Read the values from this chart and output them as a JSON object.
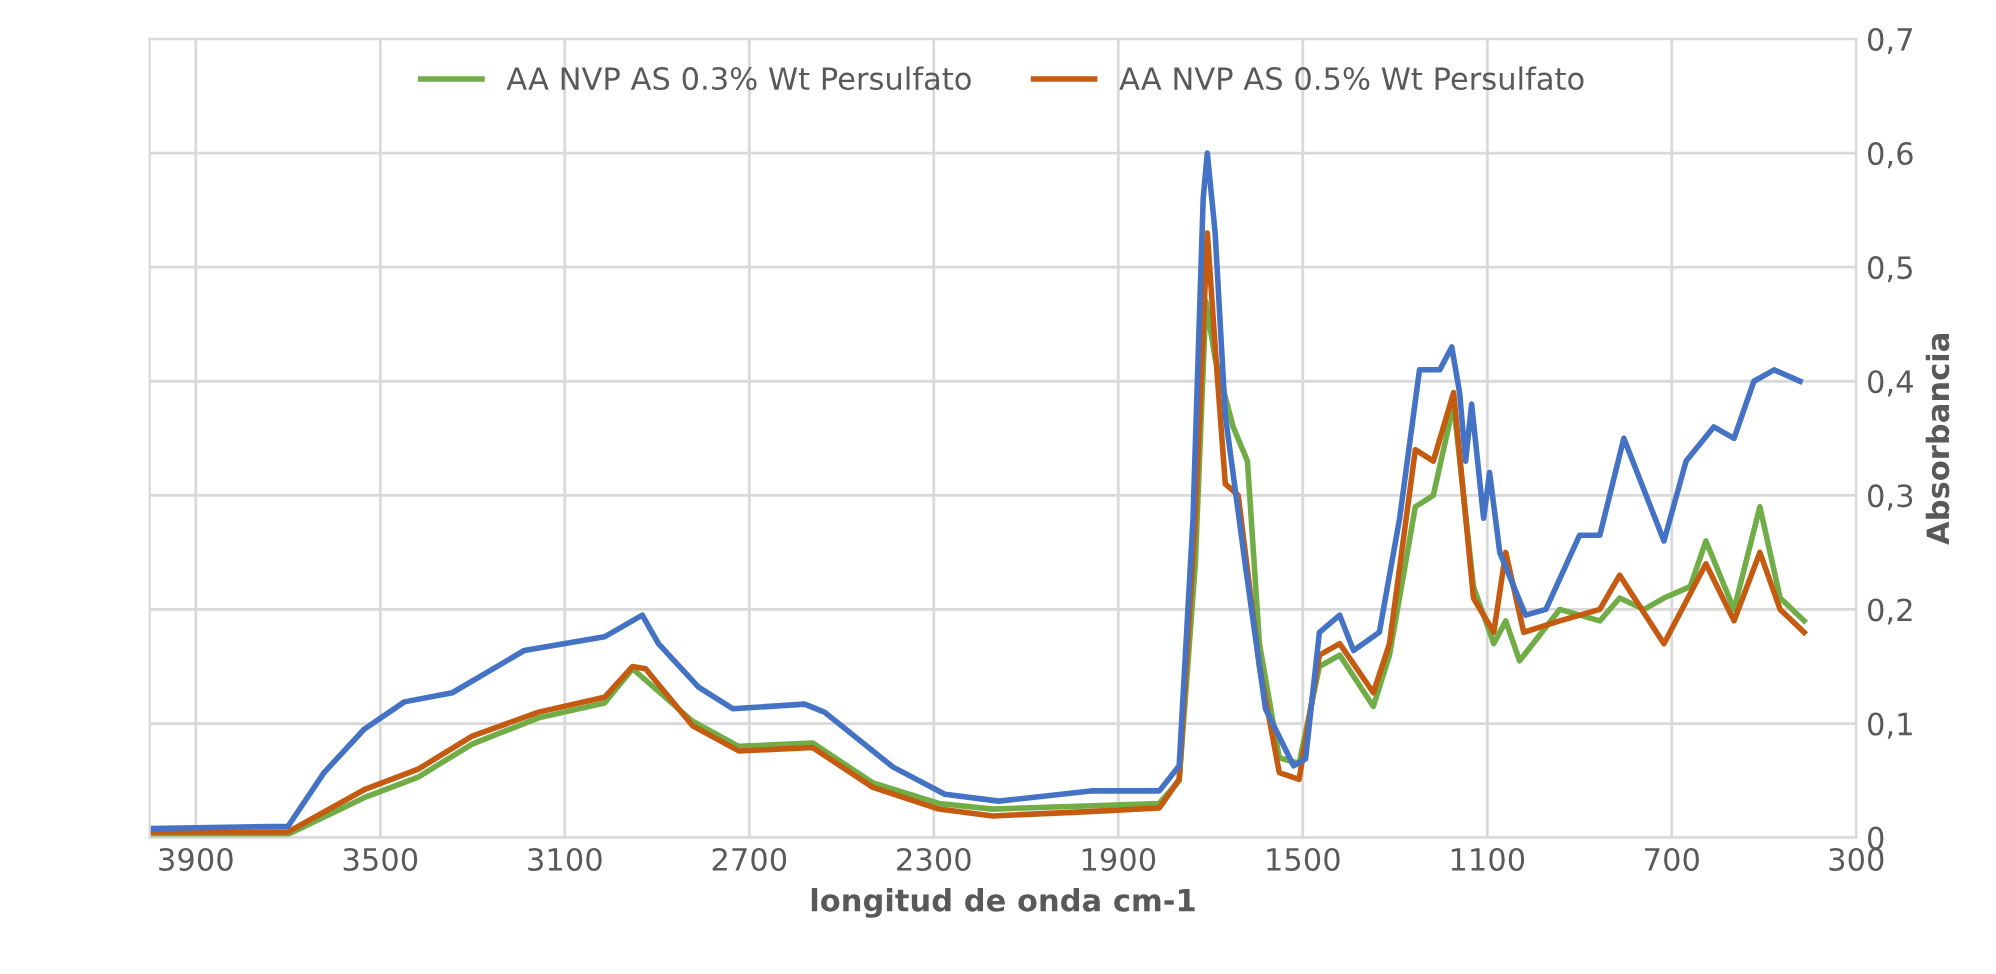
{
  "chart_data": {
    "type": "line",
    "xlabel": "longitud de onda cm-1",
    "ylabel": "Absorbancia",
    "xlim": [
      4000,
      300
    ],
    "xticks": [
      3900,
      3500,
      3100,
      2700,
      2300,
      1900,
      1500,
      1100,
      700,
      300
    ],
    "ylim": [
      0,
      0.7
    ],
    "yticks": [
      {
        "value": 0,
        "label": "0"
      },
      {
        "value": 0.1,
        "label": "0,1"
      },
      {
        "value": 0.2,
        "label": "0,2"
      },
      {
        "value": 0.3,
        "label": "0,3"
      },
      {
        "value": 0.4,
        "label": "0,4"
      },
      {
        "value": 0.5,
        "label": "0,5"
      },
      {
        "value": 0.6,
        "label": "0,6"
      },
      {
        "value": 0.7,
        "label": "0,7"
      }
    ],
    "grid": true,
    "legend": "top",
    "marker": "none",
    "line_style": "solid",
    "series": [
      {
        "name": "AA NVP AS 0.3% Wt Persulfato",
        "color": "#70ad47",
        "x": [
          4000,
          3700,
          3535,
          3418,
          3301,
          3157,
          3014,
          2953,
          2823,
          2723,
          2563,
          2432,
          2289,
          2172,
          1955,
          1811,
          1768,
          1733,
          1710,
          1690,
          1651,
          1620,
          1594,
          1551,
          1508,
          1464,
          1420,
          1347,
          1312,
          1256,
          1217,
          1173,
          1130,
          1086,
          1060,
          1030,
          943,
          856,
          813,
          760,
          717,
          660,
          626,
          565,
          509,
          465,
          413
        ],
        "values": [
          0.003,
          0.003,
          0.035,
          0.053,
          0.082,
          0.105,
          0.118,
          0.148,
          0.102,
          0.08,
          0.083,
          0.048,
          0.03,
          0.025,
          0.028,
          0.03,
          0.05,
          0.24,
          0.47,
          0.42,
          0.36,
          0.33,
          0.17,
          0.07,
          0.065,
          0.15,
          0.16,
          0.115,
          0.16,
          0.29,
          0.3,
          0.38,
          0.22,
          0.17,
          0.19,
          0.155,
          0.2,
          0.19,
          0.21,
          0.2,
          0.21,
          0.22,
          0.26,
          0.2,
          0.29,
          0.21,
          0.19
        ]
      },
      {
        "name": "AA NVP AS 0.5% Wt Persulfato",
        "color": "#c55a11",
        "x": [
          4000,
          3700,
          3535,
          3418,
          3301,
          3157,
          3014,
          2953,
          2925,
          2823,
          2723,
          2563,
          2432,
          2289,
          2172,
          1955,
          1811,
          1768,
          1733,
          1707,
          1690,
          1668,
          1640,
          1594,
          1551,
          1508,
          1464,
          1420,
          1347,
          1312,
          1256,
          1217,
          1173,
          1130,
          1086,
          1060,
          1021,
          943,
          856,
          813,
          717,
          626,
          565,
          509,
          465,
          413
        ],
        "values": [
          0.005,
          0.005,
          0.042,
          0.06,
          0.089,
          0.11,
          0.123,
          0.15,
          0.148,
          0.098,
          0.076,
          0.079,
          0.044,
          0.025,
          0.019,
          0.023,
          0.026,
          0.051,
          0.28,
          0.53,
          0.43,
          0.31,
          0.3,
          0.15,
          0.057,
          0.051,
          0.16,
          0.17,
          0.127,
          0.17,
          0.34,
          0.33,
          0.39,
          0.21,
          0.18,
          0.25,
          0.18,
          0.19,
          0.2,
          0.23,
          0.17,
          0.24,
          0.19,
          0.25,
          0.2,
          0.18
        ]
      },
      {
        "color": "#4472c4",
        "x": [
          4000,
          3700,
          3622,
          3535,
          3448,
          3344,
          3188,
          3014,
          2932,
          2897,
          2810,
          2736,
          2580,
          2537,
          2389,
          2276,
          2159,
          1955,
          1811,
          1768,
          1738,
          1716,
          1707,
          1690,
          1668,
          1625,
          1581,
          1520,
          1494,
          1464,
          1420,
          1390,
          1334,
          1290,
          1247,
          1203,
          1177,
          1160,
          1147,
          1134,
          1108,
          1095,
          1073,
          1017,
          973,
          900,
          856,
          804,
          717,
          669,
          609,
          565,
          522,
          478,
          422
        ],
        "values": [
          0.008,
          0.01,
          0.057,
          0.095,
          0.119,
          0.127,
          0.164,
          0.176,
          0.195,
          0.17,
          0.132,
          0.113,
          0.117,
          0.11,
          0.062,
          0.038,
          0.032,
          0.041,
          0.041,
          0.063,
          0.28,
          0.56,
          0.6,
          0.53,
          0.37,
          0.24,
          0.113,
          0.063,
          0.069,
          0.18,
          0.195,
          0.164,
          0.18,
          0.28,
          0.41,
          0.41,
          0.43,
          0.39,
          0.33,
          0.38,
          0.28,
          0.32,
          0.25,
          0.195,
          0.2,
          0.265,
          0.265,
          0.35,
          0.26,
          0.33,
          0.36,
          0.35,
          0.4,
          0.41,
          0.4
        ]
      }
    ]
  }
}
